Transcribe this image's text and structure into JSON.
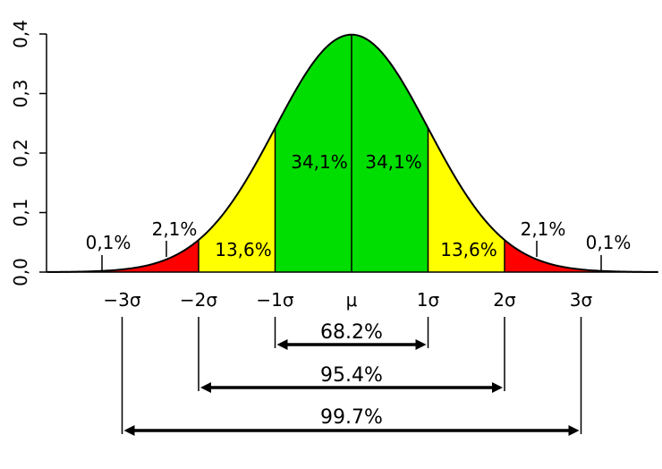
{
  "chart_data": {
    "type": "area",
    "title": "",
    "xlabel": "",
    "ylabel": "",
    "distribution": {
      "name": "normal",
      "mean": 0,
      "sd": 1
    },
    "xlim": [
      -4,
      4
    ],
    "ylim": [
      0,
      0.4
    ],
    "y_ticks": [
      {
        "value": 0.0,
        "label": "0,0"
      },
      {
        "value": 0.1,
        "label": "0,1"
      },
      {
        "value": 0.2,
        "label": "0,2"
      },
      {
        "value": 0.3,
        "label": "0,3"
      },
      {
        "value": 0.4,
        "label": "0,4"
      }
    ],
    "x_ticks": [
      {
        "value": -3,
        "label": "−3σ"
      },
      {
        "value": -2,
        "label": "−2σ"
      },
      {
        "value": -1,
        "label": "−1σ"
      },
      {
        "value": 0,
        "label": "μ"
      },
      {
        "value": 1,
        "label": "1σ"
      },
      {
        "value": 2,
        "label": "2σ"
      },
      {
        "value": 3,
        "label": "3σ"
      }
    ],
    "regions": [
      {
        "from": -4,
        "to": -3,
        "percent": 0.1,
        "label": "0,1%",
        "color": "#ff0000"
      },
      {
        "from": -3,
        "to": -2,
        "percent": 2.1,
        "label": "2,1%",
        "color": "#ff0000"
      },
      {
        "from": -2,
        "to": -1,
        "percent": 13.6,
        "label": "13,6%",
        "color": "#ffff00"
      },
      {
        "from": -1,
        "to": 0,
        "percent": 34.1,
        "label": "34,1%",
        "color": "#00dd00"
      },
      {
        "from": 0,
        "to": 1,
        "percent": 34.1,
        "label": "34,1%",
        "color": "#00dd00"
      },
      {
        "from": 1,
        "to": 2,
        "percent": 13.6,
        "label": "13,6%",
        "color": "#ffff00"
      },
      {
        "from": 2,
        "to": 3,
        "percent": 2.1,
        "label": "2,1%",
        "color": "#ff0000"
      },
      {
        "from": 3,
        "to": 4,
        "percent": 0.1,
        "label": "0,1%",
        "color": "#ff0000"
      }
    ],
    "ranges": [
      {
        "from": -1,
        "to": 1,
        "label": "68.2%"
      },
      {
        "from": -2,
        "to": 2,
        "label": "95.4%"
      },
      {
        "from": -3,
        "to": 3,
        "label": "99.7%"
      }
    ],
    "grid": false,
    "legend": "none"
  }
}
